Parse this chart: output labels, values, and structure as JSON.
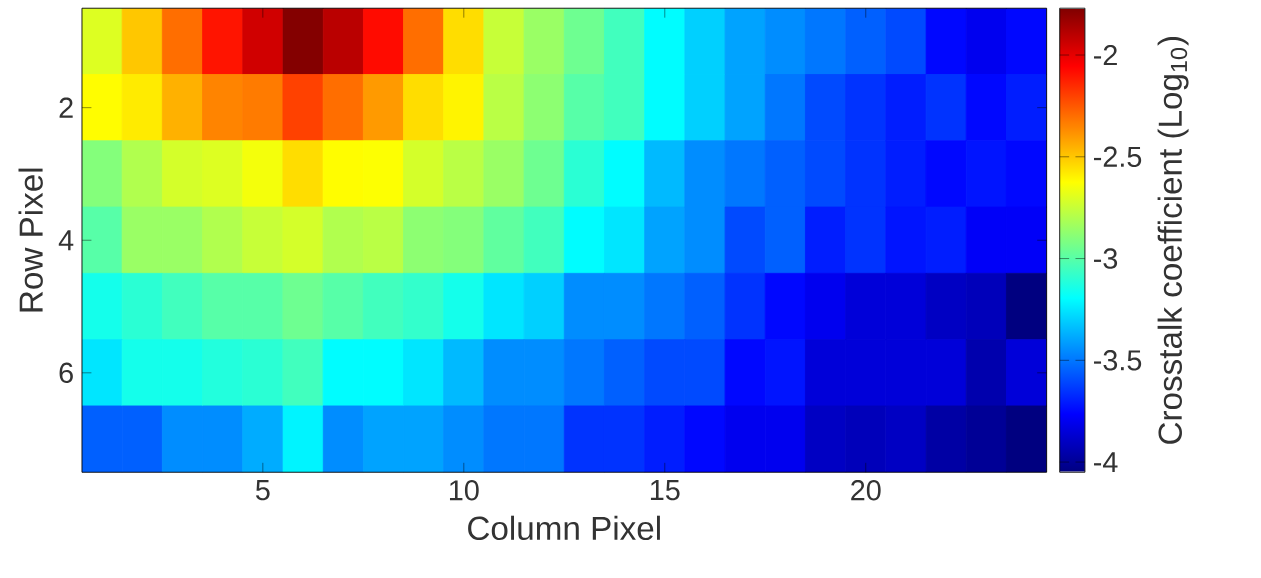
{
  "chart_data": {
    "type": "heatmap",
    "xlabel": "Column Pixel",
    "ylabel": "Row Pixel",
    "clabel": "Crosstalk coefficient (Log$_{10}$)",
    "x": [
      1,
      2,
      3,
      4,
      5,
      6,
      7,
      8,
      9,
      10,
      11,
      12,
      13,
      14,
      15,
      16,
      17,
      18,
      19,
      20,
      21,
      22,
      23,
      24
    ],
    "y": [
      1,
      2,
      3,
      4,
      5,
      6,
      7
    ],
    "xlim": [
      0.5,
      24.5
    ],
    "ylim": [
      7.5,
      0.5
    ],
    "xticks": [
      5,
      10,
      15,
      20
    ],
    "yticks": [
      2,
      4,
      6
    ],
    "clim": [
      -4.05,
      -1.77
    ],
    "cticks": [
      -4,
      -3.5,
      -3,
      -2.5,
      -2
    ],
    "cells": [
      [
        -2.7,
        -2.5,
        -2.3,
        -2.1,
        -1.95,
        -1.78,
        -1.9,
        -2.08,
        -2.3,
        -2.55,
        -2.75,
        -2.85,
        -2.95,
        -3.05,
        -3.2,
        -3.3,
        -3.4,
        -3.45,
        -3.5,
        -3.55,
        -3.6,
        -3.75,
        -3.8,
        -3.75
      ],
      [
        -2.62,
        -2.58,
        -2.45,
        -2.35,
        -2.33,
        -2.2,
        -2.3,
        -2.4,
        -2.55,
        -2.6,
        -2.78,
        -2.88,
        -3.0,
        -3.05,
        -3.2,
        -3.3,
        -3.4,
        -3.5,
        -3.6,
        -3.65,
        -3.7,
        -3.65,
        -3.75,
        -3.7
      ],
      [
        -2.9,
        -2.8,
        -2.72,
        -2.7,
        -2.65,
        -2.55,
        -2.62,
        -2.63,
        -2.72,
        -2.78,
        -2.85,
        -2.95,
        -3.1,
        -3.2,
        -3.35,
        -3.45,
        -3.5,
        -3.55,
        -3.6,
        -3.65,
        -3.7,
        -3.75,
        -3.72,
        -3.75
      ],
      [
        -3.0,
        -2.85,
        -2.85,
        -2.8,
        -2.75,
        -2.72,
        -2.8,
        -2.78,
        -2.88,
        -2.9,
        -2.98,
        -3.05,
        -3.2,
        -3.25,
        -3.4,
        -3.45,
        -3.6,
        -3.55,
        -3.7,
        -3.65,
        -3.72,
        -3.7,
        -3.78,
        -3.78
      ],
      [
        -3.15,
        -3.1,
        -3.05,
        -3.0,
        -3.0,
        -2.95,
        -3.0,
        -3.05,
        -3.08,
        -3.15,
        -3.25,
        -3.3,
        -3.45,
        -3.45,
        -3.5,
        -3.55,
        -3.65,
        -3.75,
        -3.8,
        -3.85,
        -3.85,
        -3.9,
        -3.92,
        -4.05
      ],
      [
        -3.25,
        -3.15,
        -3.15,
        -3.12,
        -3.1,
        -3.05,
        -3.2,
        -3.2,
        -3.25,
        -3.35,
        -3.45,
        -3.45,
        -3.5,
        -3.55,
        -3.6,
        -3.6,
        -3.75,
        -3.72,
        -3.85,
        -3.85,
        -3.85,
        -3.85,
        -3.95,
        -3.85
      ],
      [
        -3.55,
        -3.55,
        -3.45,
        -3.45,
        -3.38,
        -3.22,
        -3.45,
        -3.4,
        -3.4,
        -3.45,
        -3.5,
        -3.5,
        -3.65,
        -3.65,
        -3.7,
        -3.75,
        -3.8,
        -3.8,
        -3.9,
        -3.92,
        -3.9,
        -3.97,
        -4.0,
        -4.05
      ]
    ]
  }
}
